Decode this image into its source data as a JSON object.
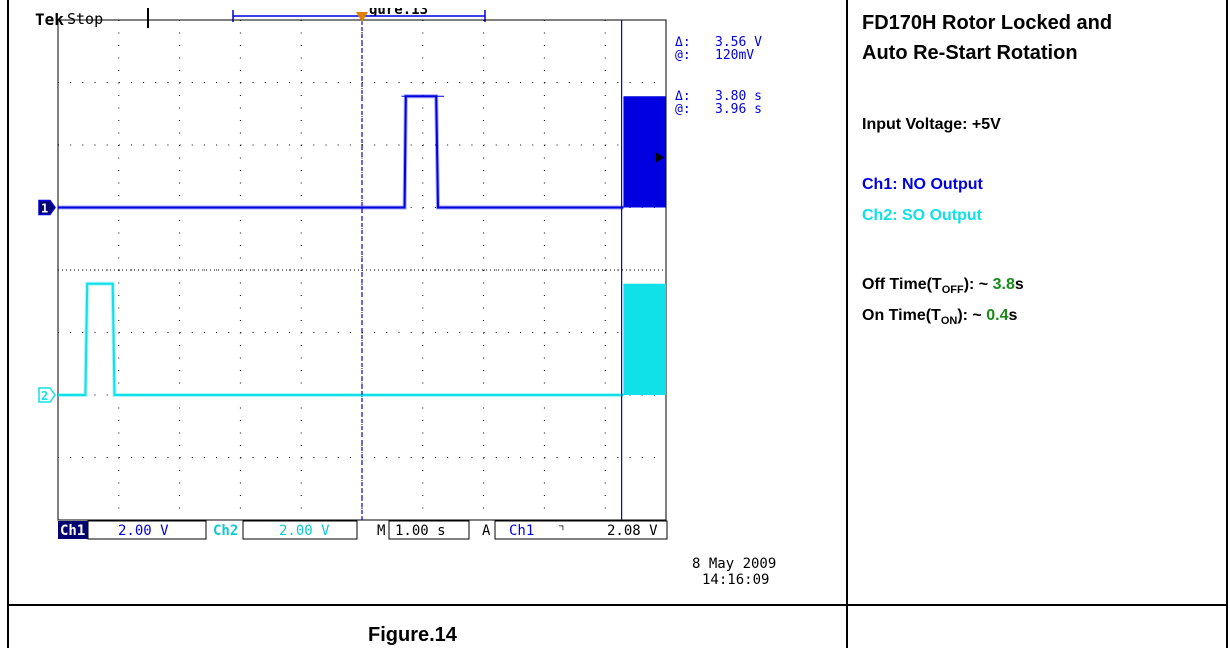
{
  "scope": {
    "brand": "Tek",
    "run_state": "Stop",
    "top_cutoff_text": "gure.13",
    "trigger_marker": "T",
    "cursor_readout": [
      {
        "symbol": "Δ:",
        "value": "3.56 V"
      },
      {
        "symbol": "@:",
        "value": "120mV"
      },
      {
        "symbol": "Δ:",
        "value": "3.80 s"
      },
      {
        "symbol": "@:",
        "value": "3.96 s"
      }
    ],
    "channel_markers": [
      "1",
      "2"
    ],
    "status_bar": {
      "ch1_label": "Ch1",
      "ch1_scale": "2.00 V",
      "ch2_label": "Ch2",
      "ch2_scale": "2.00 V",
      "time_label": "M",
      "time_scale": "1.00 s",
      "trigger_label": "A",
      "trigger_source": "Ch1",
      "trigger_slope": "⌝",
      "trigger_level": "2.08 V"
    },
    "date": "8 May 2009",
    "time": "14:16:09"
  },
  "panel": {
    "title_line1": "FD170H Rotor Locked and",
    "title_line2": "Auto Re-Start Rotation",
    "input_voltage": "Input Voltage: +5V",
    "ch1_desc": "Ch1: NO Output",
    "ch2_desc": "Ch2: SO Output",
    "off_prefix": "Off Time(T",
    "off_sub": "OFF",
    "off_mid": "): ~ ",
    "off_value": "3.8",
    "off_unit": "s",
    "on_prefix": "On Time(T",
    "on_sub": "ON",
    "on_mid": "): ~ ",
    "on_value": "0.4",
    "on_unit": "s"
  },
  "caption": "Figure.14",
  "colors": {
    "ch1": "#0000e0",
    "ch2": "#10e0e8",
    "value_green": "#1a8a1a",
    "grid": "#000000"
  },
  "chart_data": {
    "type": "line",
    "xlabel": "",
    "ylabel": "",
    "x_unit": "s",
    "y_unit": "V",
    "xlim": [
      0,
      10
    ],
    "grid": true,
    "series": [
      {
        "name": "Ch1",
        "points": [
          [
            0,
            0
          ],
          [
            5.7,
            0
          ],
          [
            5.72,
            3.56
          ],
          [
            6.22,
            3.56
          ],
          [
            6.25,
            0
          ],
          [
            10,
            0
          ]
        ],
        "burst_from": 10.15,
        "burst_high": 3.56
      },
      {
        "name": "Ch2",
        "points": [
          [
            0,
            0
          ],
          [
            0.45,
            0
          ],
          [
            0.48,
            3.56
          ],
          [
            0.9,
            3.56
          ],
          [
            0.93,
            0
          ],
          [
            10,
            0
          ]
        ],
        "burst_from": 10.15,
        "burst_high": 3.56
      }
    ]
  }
}
